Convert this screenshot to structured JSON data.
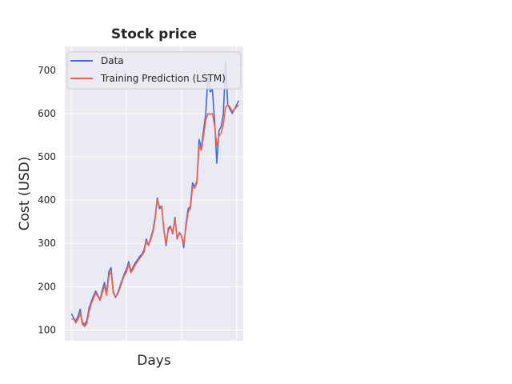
{
  "chart_data": {
    "type": "line",
    "title": "Stock price",
    "xlabel": "Days",
    "ylabel": "Cost (USD)",
    "xlim": [
      -60,
      1560
    ],
    "ylim": [
      75,
      755
    ],
    "yticks": [
      100,
      200,
      300,
      400,
      500,
      600,
      700
    ],
    "xticks_unlabeled": [
      0,
      500,
      1000,
      1500
    ],
    "grid": true,
    "legend_position": "top-left",
    "series": [
      {
        "name": "Data",
        "color": "#4169e1",
        "x": [
          0,
          20,
          40,
          60,
          80,
          90,
          100,
          120,
          140,
          160,
          170,
          180,
          200,
          220,
          240,
          260,
          280,
          300,
          320,
          340,
          360,
          380,
          400,
          420,
          440,
          450,
          460,
          480,
          500,
          520,
          540,
          560,
          580,
          600,
          620,
          640,
          660,
          680,
          700,
          720,
          740,
          760,
          780,
          800,
          820,
          840,
          860,
          880,
          900,
          920,
          940,
          960,
          980,
          1000,
          1020,
          1040,
          1060,
          1080,
          1100,
          1120,
          1140,
          1160,
          1180,
          1200,
          1220,
          1240,
          1260,
          1280,
          1300,
          1320,
          1340,
          1360,
          1380,
          1400,
          1420,
          1440,
          1460,
          1480,
          1500,
          1520
        ],
        "y": [
          138,
          128,
          120,
          132,
          148,
          130,
          118,
          112,
          122,
          150,
          158,
          165,
          178,
          190,
          180,
          170,
          192,
          210,
          185,
          235,
          244,
          190,
          175,
          185,
          200,
          208,
          215,
          230,
          240,
          258,
          235,
          245,
          255,
          262,
          270,
          275,
          285,
          310,
          295,
          312,
          330,
          360,
          405,
          380,
          385,
          330,
          295,
          335,
          340,
          322,
          360,
          310,
          325,
          318,
          290,
          345,
          380,
          385,
          440,
          430,
          445,
          540,
          520,
          560,
          600,
          690,
          650,
          655,
          585,
          485,
          560,
          570,
          600,
          720,
          620,
          610,
          600,
          610,
          620,
          630
        ]
      },
      {
        "name": "Training Prediction (LSTM)",
        "color": "#fa5f46",
        "x": [
          0,
          20,
          40,
          60,
          80,
          90,
          100,
          120,
          140,
          160,
          170,
          180,
          200,
          220,
          240,
          260,
          280,
          300,
          320,
          340,
          360,
          380,
          400,
          420,
          440,
          450,
          460,
          480,
          500,
          520,
          540,
          560,
          580,
          600,
          620,
          640,
          660,
          680,
          700,
          720,
          740,
          760,
          780,
          800,
          820,
          840,
          860,
          880,
          900,
          920,
          940,
          960,
          980,
          1000,
          1020,
          1040,
          1060,
          1080,
          1100,
          1120,
          1140,
          1160,
          1180,
          1200,
          1220,
          1240,
          1260,
          1280,
          1300,
          1320,
          1340,
          1360,
          1380,
          1400,
          1420,
          1440,
          1460,
          1480,
          1500,
          1520
        ],
        "y": [
          125,
          126,
          116,
          125,
          138,
          128,
          113,
          108,
          115,
          142,
          150,
          160,
          172,
          185,
          178,
          168,
          185,
          202,
          180,
          225,
          236,
          185,
          178,
          182,
          196,
          204,
          212,
          225,
          234,
          252,
          232,
          240,
          250,
          258,
          265,
          272,
          280,
          305,
          296,
          308,
          325,
          355,
          400,
          385,
          386,
          332,
          300,
          330,
          338,
          325,
          355,
          312,
          322,
          318,
          298,
          338,
          372,
          380,
          430,
          428,
          440,
          525,
          515,
          548,
          585,
          600,
          598,
          600,
          572,
          525,
          548,
          555,
          575,
          615,
          620,
          615,
          605,
          610,
          615,
          620
        ]
      }
    ]
  }
}
